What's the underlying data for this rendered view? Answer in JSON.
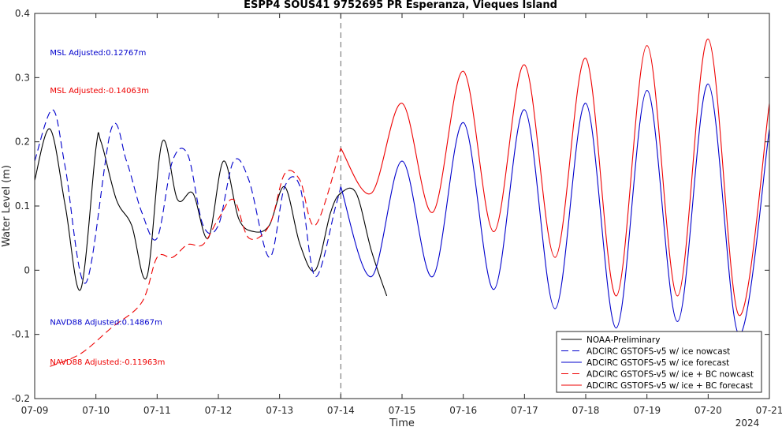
{
  "chart_data": {
    "type": "line",
    "title": "ESPP4 SOUS41 9752695 PR Esperanza, Vieques Island",
    "xlabel": "Time",
    "ylabel": "Water Level (m)",
    "x_ticks": [
      "07-09",
      "07-10",
      "07-11",
      "07-12",
      "07-13",
      "07-14",
      "07-15",
      "07-16",
      "07-17",
      "07-18",
      "07-19",
      "07-20",
      "07-21"
    ],
    "x_year_label": "2024",
    "xlim": [
      "2024-07-09T00:00",
      "2024-07-21T00:00"
    ],
    "y_ticks": [
      "-0.2",
      "-0.1",
      "0",
      "0.1",
      "0.2",
      "0.3",
      "0.4"
    ],
    "ylim": [
      -0.2,
      0.4
    ],
    "vertical_marker": "2024-07-14T00:00",
    "grid": false,
    "legend_position": "bottom-right",
    "annotations": [
      {
        "text": "MSL Adjusted:0.12767m",
        "color": "#0000cc",
        "x": "2024-07-09T06:00",
        "y": 0.34
      },
      {
        "text": "MSL Adjusted:-0.14063m",
        "color": "#ee0000",
        "x": "2024-07-09T06:00",
        "y": 0.281
      },
      {
        "text": "NAVD88 Adjusted:0.14867m",
        "color": "#0000cc",
        "x": "2024-07-09T06:00",
        "y": -0.08
      },
      {
        "text": "NAVD88 Adjusted:-0.11963m",
        "color": "#ee0000",
        "x": "2024-07-09T06:00",
        "y": -0.142
      }
    ],
    "series": [
      {
        "name": "NOAA-Preliminary",
        "color": "#000000",
        "style": "solid",
        "x": [
          "2024-07-09T00:00",
          "2024-07-09T06:00",
          "2024-07-09T12:00",
          "2024-07-09T18:00",
          "2024-07-10T00:00",
          "2024-07-10T02:00",
          "2024-07-10T08:00",
          "2024-07-10T14:00",
          "2024-07-10T20:00",
          "2024-07-11T02:00",
          "2024-07-11T08:00",
          "2024-07-11T14:00",
          "2024-07-11T20:00",
          "2024-07-12T02:00",
          "2024-07-12T08:00",
          "2024-07-12T14:00",
          "2024-07-12T20:00",
          "2024-07-13T02:00",
          "2024-07-13T08:00",
          "2024-07-13T14:00",
          "2024-07-13T20:00",
          "2024-07-14T00:00",
          "2024-07-14T06:00",
          "2024-07-14T12:00",
          "2024-07-14T18:00"
        ],
        "y": [
          0.14,
          0.22,
          0.1,
          -0.03,
          0.19,
          0.2,
          0.11,
          0.07,
          -0.01,
          0.2,
          0.11,
          0.12,
          0.05,
          0.17,
          0.08,
          0.06,
          0.07,
          0.13,
          0.04,
          0.0,
          0.09,
          0.12,
          0.12,
          0.03,
          -0.04
        ]
      },
      {
        "name": "ADCIRC GSTOFS-v5 w/ ice nowcast",
        "color": "#0000cc",
        "style": "dashed",
        "x": [
          "2024-07-09T00:00",
          "2024-07-09T07:00",
          "2024-07-09T12:00",
          "2024-07-09T20:00",
          "2024-07-10T06:00",
          "2024-07-10T12:00",
          "2024-07-10T18:00",
          "2024-07-11T00:00",
          "2024-07-11T06:00",
          "2024-07-11T12:00",
          "2024-07-11T18:00",
          "2024-07-12T00:00",
          "2024-07-12T06:00",
          "2024-07-12T12:00",
          "2024-07-12T20:00",
          "2024-07-13T02:00",
          "2024-07-13T08:00",
          "2024-07-13T14:00",
          "2024-07-13T22:00",
          "2024-07-14T00:00"
        ],
        "y": [
          0.17,
          0.25,
          0.16,
          -0.02,
          0.22,
          0.17,
          0.09,
          0.05,
          0.17,
          0.18,
          0.07,
          0.07,
          0.17,
          0.14,
          0.02,
          0.13,
          0.13,
          -0.01,
          0.1,
          0.13
        ]
      },
      {
        "name": "ADCIRC GSTOFS-v5 w/ ice forecast",
        "color": "#0000cc",
        "style": "solid",
        "x": [
          "2024-07-14T00:00",
          "2024-07-14T12:00",
          "2024-07-15T00:00",
          "2024-07-15T12:00",
          "2024-07-16T00:00",
          "2024-07-16T12:00",
          "2024-07-17T00:00",
          "2024-07-17T12:00",
          "2024-07-18T00:00",
          "2024-07-18T12:00",
          "2024-07-19T00:00",
          "2024-07-19T12:00",
          "2024-07-20T00:00",
          "2024-07-20T12:00",
          "2024-07-21T00:00"
        ],
        "y": [
          0.13,
          -0.01,
          0.17,
          -0.01,
          0.23,
          -0.03,
          0.25,
          -0.06,
          0.26,
          -0.09,
          0.28,
          -0.08,
          0.29,
          -0.1,
          0.22
        ]
      },
      {
        "name": "ADCIRC GSTOFS-v5 w/ ice + BC nowcast",
        "color": "#ee0000",
        "style": "dashed",
        "x": [
          "2024-07-09T06:00",
          "2024-07-09T18:00",
          "2024-07-10T06:00",
          "2024-07-10T18:00",
          "2024-07-11T00:00",
          "2024-07-11T06:00",
          "2024-07-11T12:00",
          "2024-07-11T18:00",
          "2024-07-12T00:00",
          "2024-07-12T06:00",
          "2024-07-12T12:00",
          "2024-07-12T20:00",
          "2024-07-13T02:00",
          "2024-07-13T08:00",
          "2024-07-13T14:00",
          "2024-07-14T00:00"
        ],
        "y": [
          -0.15,
          -0.13,
          -0.09,
          -0.05,
          0.02,
          0.02,
          0.04,
          0.04,
          0.08,
          0.11,
          0.05,
          0.07,
          0.15,
          0.14,
          0.07,
          0.19
        ]
      },
      {
        "name": "ADCIRC GSTOFS-v5 w/ ice + BC forecast",
        "color": "#ee0000",
        "style": "solid",
        "x": [
          "2024-07-14T00:00",
          "2024-07-14T12:00",
          "2024-07-15T00:00",
          "2024-07-15T12:00",
          "2024-07-16T00:00",
          "2024-07-16T12:00",
          "2024-07-17T00:00",
          "2024-07-17T12:00",
          "2024-07-18T00:00",
          "2024-07-18T12:00",
          "2024-07-19T00:00",
          "2024-07-19T12:00",
          "2024-07-20T00:00",
          "2024-07-20T12:00",
          "2024-07-21T00:00"
        ],
        "y": [
          0.19,
          0.12,
          0.26,
          0.09,
          0.31,
          0.06,
          0.32,
          0.02,
          0.33,
          -0.04,
          0.35,
          -0.04,
          0.36,
          -0.07,
          0.26
        ]
      }
    ]
  }
}
